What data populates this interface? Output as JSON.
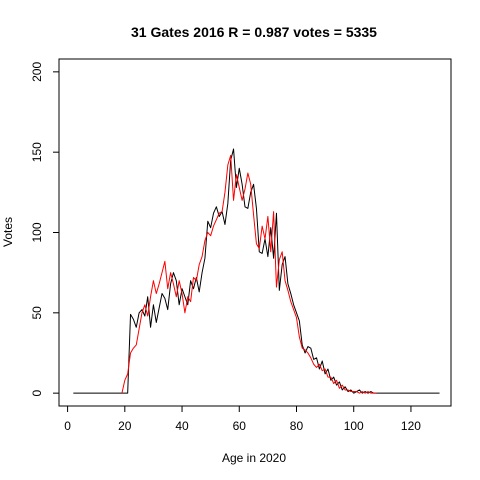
{
  "chart_data": {
    "type": "line",
    "title": "31 Gates 2016 R = 0.987 votes = 5335",
    "xlabel": "Age in 2020",
    "ylabel": "Votes",
    "xlim": [
      -3,
      134
    ],
    "ylim": [
      -8,
      208
    ],
    "x_ticks": [
      0,
      20,
      40,
      60,
      80,
      100,
      120
    ],
    "y_ticks": [
      0,
      50,
      100,
      150,
      200
    ],
    "grid": false,
    "legend": "none",
    "series": [
      {
        "color": "#000000",
        "x": [
          2,
          21,
          22,
          23,
          24,
          25,
          26,
          27,
          28,
          29,
          30,
          31,
          32,
          33,
          34,
          35,
          36,
          37,
          38,
          39,
          40,
          41,
          42,
          43,
          44,
          45,
          46,
          47,
          48,
          49,
          50,
          51,
          52,
          53,
          54,
          55,
          56,
          57,
          58,
          59,
          60,
          61,
          62,
          63,
          64,
          65,
          66,
          67,
          68,
          69,
          70,
          71,
          72,
          73,
          74,
          75,
          76,
          77,
          78,
          79,
          80,
          81,
          82,
          83,
          84,
          85,
          86,
          87,
          88,
          89,
          90,
          91,
          92,
          93,
          94,
          95,
          96,
          97,
          98,
          99,
          100,
          101,
          102,
          103,
          104,
          105,
          106,
          107,
          108,
          110,
          130
        ],
        "y": [
          0,
          0,
          49,
          46,
          41,
          50,
          52,
          48,
          60,
          41,
          55,
          44,
          53,
          62,
          59,
          52,
          68,
          75,
          70,
          55,
          65,
          60,
          55,
          70,
          65,
          72,
          63,
          75,
          84,
          107,
          103,
          112,
          116,
          110,
          113,
          105,
          118,
          145,
          152,
          128,
          140,
          130,
          116,
          115,
          125,
          130,
          115,
          88,
          87,
          96,
          85,
          103,
          84,
          112,
          64,
          80,
          85,
          68,
          62,
          55,
          50,
          45,
          30,
          25,
          29,
          28,
          21,
          22,
          15,
          20,
          12,
          15,
          8,
          10,
          5,
          7,
          2,
          4,
          1,
          2,
          0,
          1,
          2,
          0,
          1,
          0,
          1,
          0,
          0,
          0,
          0
        ]
      },
      {
        "color": "#ff0000",
        "x": [
          19,
          20,
          21,
          22,
          23,
          24,
          25,
          26,
          27,
          28,
          29,
          30,
          31,
          32,
          33,
          34,
          35,
          36,
          37,
          38,
          39,
          40,
          41,
          42,
          43,
          44,
          45,
          46,
          47,
          48,
          49,
          50,
          51,
          52,
          53,
          54,
          55,
          56,
          57,
          58,
          59,
          60,
          61,
          62,
          63,
          64,
          65,
          66,
          67,
          68,
          69,
          70,
          71,
          72,
          73,
          74,
          75,
          76,
          77,
          78,
          79,
          80,
          81,
          82,
          83,
          84,
          85,
          86,
          87,
          88,
          89,
          90,
          91,
          92,
          93,
          94,
          95,
          96,
          97,
          98,
          99,
          100,
          101,
          102,
          103,
          104,
          105,
          106,
          107,
          108
        ],
        "y": [
          0,
          8,
          12,
          25,
          28,
          30,
          40,
          50,
          55,
          48,
          60,
          70,
          62,
          68,
          75,
          82,
          65,
          75,
          68,
          60,
          70,
          62,
          50,
          60,
          57,
          72,
          70,
          80,
          85,
          95,
          100,
          98,
          104,
          108,
          112,
          113,
          125,
          142,
          148,
          120,
          136,
          128,
          120,
          127,
          137,
          130,
          111,
          93,
          90,
          104,
          96,
          110,
          88,
          113,
          66,
          83,
          88,
          70,
          64,
          57,
          52,
          47,
          35,
          28,
          27,
          25,
          22,
          18,
          16,
          18,
          14,
          15,
          10,
          10,
          6,
          8,
          3,
          5,
          2,
          2,
          1,
          1,
          1,
          0,
          1,
          0,
          1,
          0,
          0,
          0
        ]
      }
    ]
  }
}
